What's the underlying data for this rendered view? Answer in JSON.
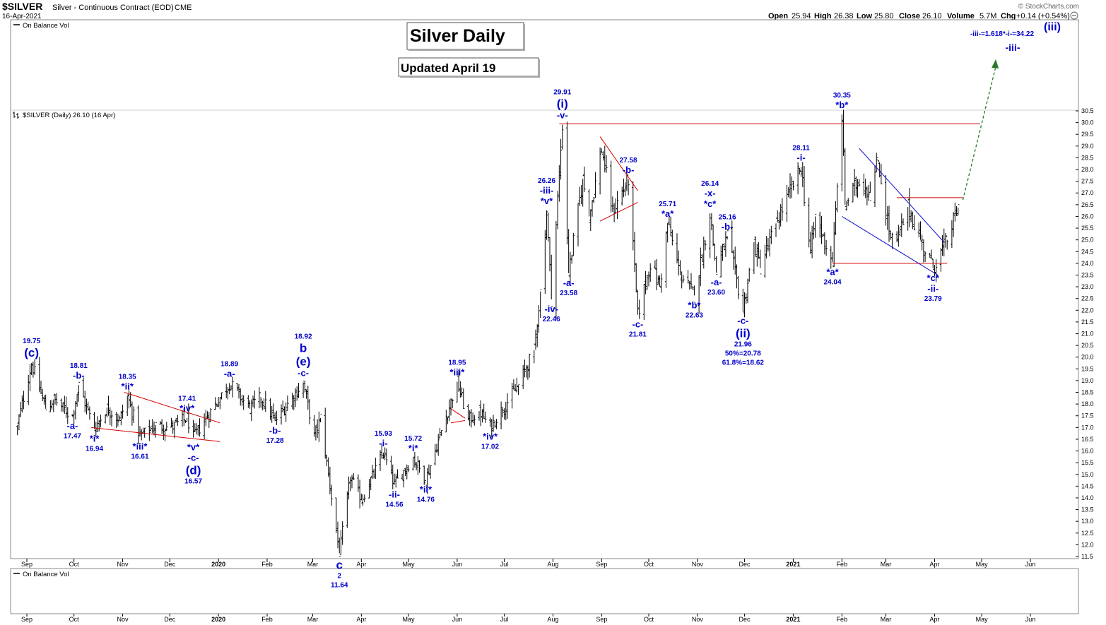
{
  "header": {
    "symbol": "$SILVER",
    "description": "Silver - Continuous Contract (EOD)",
    "exchange": "CME",
    "date": "16-Apr-2021",
    "open_label": "Open",
    "open": "25.94",
    "high_label": "High",
    "high": "26.38",
    "low_label": "Low",
    "low": "25.80",
    "close_label": "Close",
    "close": "26.10",
    "volume_label": "Volume",
    "volume": "5.7M",
    "chg_label": "Chg",
    "chg": "+0.14 (+0.54%)",
    "watermark": "© StockCharts.com"
  },
  "indicator_top": "On Balance Vol",
  "indicator_bottom": "On Balance Vol",
  "price_legend": "$SILVER (Daily) 26.10 (16 Apr)",
  "title_box": "Silver Daily",
  "updated_box": "Updated April 19",
  "colors": {
    "wave": "#0000cc",
    "trend": "#d40000",
    "channel": "#1010d0",
    "projection": "#2a7a2a"
  },
  "chart_data": {
    "type": "ohlc",
    "y_axis_range": [
      11.5,
      30.5
    ],
    "y_ticks": [
      "30.5",
      "30.0",
      "29.5",
      "29.0",
      "28.5",
      "28.0",
      "27.5",
      "27.0",
      "26.5",
      "26.0",
      "25.5",
      "25.0",
      "24.5",
      "24.0",
      "23.5",
      "23.0",
      "22.5",
      "22.0",
      "21.5",
      "21.0",
      "20.5",
      "20.0",
      "19.5",
      "19.0",
      "18.5",
      "18.0",
      "17.5",
      "17.0",
      "16.5",
      "16.0",
      "15.5",
      "15.0",
      "14.5",
      "14.0",
      "13.5",
      "13.0",
      "12.5",
      "12.0",
      "11.5"
    ],
    "x_ticks": [
      "Sep",
      "Oct",
      "Nov",
      "Dec",
      "2020",
      "Feb",
      "Mar",
      "Apr",
      "May",
      "Jun",
      "Jul",
      "Aug",
      "Sep",
      "Oct",
      "Nov",
      "Dec",
      "2021",
      "Feb",
      "Mar",
      "Apr",
      "May",
      "Jun"
    ],
    "swings": [
      [
        "2019-08-26",
        17.1
      ],
      [
        "2019-09-04",
        19.75
      ],
      [
        "2019-09-13",
        17.8
      ],
      [
        "2019-09-18",
        18.2
      ],
      [
        "2019-09-30",
        17.47
      ],
      [
        "2019-10-04",
        18.81
      ],
      [
        "2019-10-14",
        16.94
      ],
      [
        "2019-10-22",
        17.85
      ],
      [
        "2019-10-30",
        17.3
      ],
      [
        "2019-11-04",
        18.35
      ],
      [
        "2019-11-12",
        16.61
      ],
      [
        "2019-11-22",
        17.1
      ],
      [
        "2019-12-02",
        17.0
      ],
      [
        "2019-12-12",
        17.41
      ],
      [
        "2019-12-16",
        16.57
      ],
      [
        "2020-01-08",
        18.89
      ],
      [
        "2020-01-21",
        17.8
      ],
      [
        "2020-01-28",
        18.3
      ],
      [
        "2020-02-06",
        17.28
      ],
      [
        "2020-02-24",
        18.92
      ],
      [
        "2020-03-02",
        16.6
      ],
      [
        "2020-03-06",
        17.4
      ],
      [
        "2020-03-18",
        11.64
      ],
      [
        "2020-03-25",
        14.9
      ],
      [
        "2020-04-01",
        13.9
      ],
      [
        "2020-04-15",
        15.93
      ],
      [
        "2020-04-22",
        14.56
      ],
      [
        "2020-05-04",
        15.72
      ],
      [
        "2020-05-12",
        14.76
      ],
      [
        "2020-06-01",
        18.95
      ],
      [
        "2020-06-08",
        17.3
      ],
      [
        "2020-06-15",
        17.7
      ],
      [
        "2020-06-22",
        17.02
      ],
      [
        "2020-07-10",
        18.8
      ],
      [
        "2020-07-20",
        20.3
      ],
      [
        "2020-07-24",
        22.8
      ],
      [
        "2020-07-28",
        26.26
      ],
      [
        "2020-07-31",
        22.46
      ],
      [
        "2020-08-07",
        29.91
      ],
      [
        "2020-08-11",
        23.58
      ],
      [
        "2020-08-20",
        27.6
      ],
      [
        "2020-08-24",
        26.0
      ],
      [
        "2020-09-01",
        28.9
      ],
      [
        "2020-09-08",
        26.2
      ],
      [
        "2020-09-18",
        27.58
      ],
      [
        "2020-09-24",
        21.81
      ],
      [
        "2020-10-02",
        24.0
      ],
      [
        "2020-10-08",
        23.0
      ],
      [
        "2020-10-13",
        25.71
      ],
      [
        "2020-10-21",
        23.5
      ],
      [
        "2020-10-30",
        22.63
      ],
      [
        "2020-11-09",
        26.14
      ],
      [
        "2020-11-13",
        23.6
      ],
      [
        "2020-11-20",
        25.16
      ],
      [
        "2020-11-30",
        21.96
      ],
      [
        "2020-12-07",
        24.9
      ],
      [
        "2020-12-11",
        23.8
      ],
      [
        "2020-12-21",
        25.7
      ],
      [
        "2021-01-06",
        28.11
      ],
      [
        "2021-01-12",
        24.4
      ],
      [
        "2021-01-15",
        26.0
      ],
      [
        "2021-01-26",
        24.04
      ],
      [
        "2021-02-01",
        30.35
      ],
      [
        "2021-02-03",
        26.5
      ],
      [
        "2021-02-12",
        27.6
      ],
      [
        "2021-02-19",
        27.0
      ],
      [
        "2021-02-24",
        28.4
      ],
      [
        "2021-03-04",
        25.0
      ],
      [
        "2021-03-08",
        24.9
      ],
      [
        "2021-03-15",
        26.4
      ],
      [
        "2021-03-23",
        25.0
      ],
      [
        "2021-03-31",
        23.79
      ],
      [
        "2021-04-09",
        25.0
      ],
      [
        "2021-04-16",
        26.38
      ]
    ],
    "wave_labels": [
      {
        "date": "2019-09-04",
        "price": 19.75,
        "pos": "above",
        "lines": [
          "19.75",
          "(c)"
        ]
      },
      {
        "date": "2019-09-30",
        "price": 17.47,
        "pos": "below",
        "lines": [
          "-a-",
          "17.47"
        ]
      },
      {
        "date": "2019-10-04",
        "price": 18.81,
        "pos": "above",
        "lines": [
          "18.81",
          "-b-"
        ]
      },
      {
        "date": "2019-10-14",
        "price": 16.94,
        "pos": "below",
        "lines": [
          "*i*",
          "16.94"
        ]
      },
      {
        "date": "2019-11-04",
        "price": 18.35,
        "pos": "above",
        "lines": [
          "18.35",
          "*ii*"
        ]
      },
      {
        "date": "2019-11-12",
        "price": 16.61,
        "pos": "below",
        "lines": [
          "*iii*",
          "16.61"
        ]
      },
      {
        "date": "2019-12-12",
        "price": 17.41,
        "pos": "above",
        "lines": [
          "17.41",
          "*iv*"
        ]
      },
      {
        "date": "2019-12-16",
        "price": 16.57,
        "pos": "below",
        "lines": [
          "*v*",
          "-c-",
          "(d)",
          "16.57"
        ]
      },
      {
        "date": "2020-01-08",
        "price": 18.89,
        "pos": "above",
        "lines": [
          "18.89",
          "-a-"
        ]
      },
      {
        "date": "2020-02-06",
        "price": 17.28,
        "pos": "below",
        "lines": [
          "-b-",
          "17.28"
        ]
      },
      {
        "date": "2020-02-24",
        "price": 18.92,
        "pos": "above",
        "lines": [
          "18.92",
          "b",
          "(e)",
          "-c-"
        ]
      },
      {
        "date": "2020-03-18",
        "price": 11.64,
        "pos": "below",
        "lines": [
          "c",
          "2",
          "11.64"
        ]
      },
      {
        "date": "2020-04-15",
        "price": 15.93,
        "pos": "above",
        "lines": [
          "15.93",
          "-i-"
        ]
      },
      {
        "date": "2020-04-22",
        "price": 14.56,
        "pos": "below",
        "lines": [
          "-ii-",
          "14.56"
        ]
      },
      {
        "date": "2020-05-04",
        "price": 15.72,
        "pos": "above",
        "lines": [
          "15.72",
          "*i*"
        ]
      },
      {
        "date": "2020-05-12",
        "price": 14.76,
        "pos": "below",
        "lines": [
          "*ii*",
          "14.76"
        ]
      },
      {
        "date": "2020-06-01",
        "price": 18.95,
        "pos": "above",
        "lines": [
          "18.95",
          "*iii*"
        ]
      },
      {
        "date": "2020-06-22",
        "price": 17.02,
        "pos": "below",
        "lines": [
          "*iv*",
          "17.02"
        ]
      },
      {
        "date": "2020-07-28",
        "price": 26.26,
        "pos": "above",
        "lines": [
          "26.26",
          "-iii-",
          "*v*"
        ]
      },
      {
        "date": "2020-07-31",
        "price": 22.46,
        "pos": "below",
        "lines": [
          "-iv-",
          "22.46"
        ]
      },
      {
        "date": "2020-08-07",
        "price": 29.91,
        "pos": "above",
        "lines": [
          "29.91",
          "(i)",
          "-v-"
        ]
      },
      {
        "date": "2020-08-11",
        "price": 23.58,
        "pos": "below",
        "lines": [
          "-a-",
          "23.58"
        ]
      },
      {
        "date": "2020-09-18",
        "price": 27.58,
        "pos": "above",
        "lines": [
          "27.58",
          "-b-"
        ]
      },
      {
        "date": "2020-09-24",
        "price": 21.81,
        "pos": "below",
        "lines": [
          "-c-",
          "21.81"
        ]
      },
      {
        "date": "2020-10-13",
        "price": 25.71,
        "pos": "above",
        "lines": [
          "25.71",
          "*a*"
        ]
      },
      {
        "date": "2020-10-30",
        "price": 22.63,
        "pos": "below",
        "lines": [
          "*b*",
          "22.63"
        ]
      },
      {
        "date": "2020-11-09",
        "price": 26.14,
        "pos": "above",
        "lines": [
          "26.14",
          "-x-",
          "*c*"
        ]
      },
      {
        "date": "2020-11-13",
        "price": 23.6,
        "pos": "below",
        "lines": [
          "-a-",
          "23.60"
        ]
      },
      {
        "date": "2020-11-20",
        "price": 25.16,
        "pos": "above",
        "lines": [
          "25.16",
          "-b-"
        ]
      },
      {
        "date": "2020-11-30",
        "price": 21.96,
        "pos": "below",
        "lines": [
          "-c-",
          "(ii)",
          "21.96",
          "50%=20.78",
          "61.8%=18.62"
        ]
      },
      {
        "date": "2021-01-06",
        "price": 28.11,
        "pos": "above",
        "lines": [
          "28.11",
          "-i-"
        ]
      },
      {
        "date": "2021-01-26",
        "price": 24.04,
        "pos": "below",
        "lines": [
          "*a*",
          "24.04"
        ]
      },
      {
        "date": "2021-02-01",
        "price": 30.35,
        "pos": "above",
        "lines": [
          "30.35",
          "*b*"
        ]
      },
      {
        "date": "2021-03-31",
        "price": 23.79,
        "pos": "below",
        "lines": [
          "*c*",
          "-ii-",
          "23.79"
        ]
      }
    ],
    "projection": {
      "lines": [
        "-iii-=1.618*-i-=34.22",
        "-iii-",
        "(iii)"
      ]
    },
    "trendlines_red": [
      [
        [
          "2019-10-12",
          17.0
        ],
        [
          "2020-01-02",
          16.4
        ]
      ],
      [
        [
          "2019-11-02",
          18.5
        ],
        [
          "2020-01-02",
          17.2
        ]
      ],
      [
        [
          "2020-05-28",
          17.8
        ],
        [
          "2020-06-06",
          17.4
        ]
      ],
      [
        [
          "2020-05-28",
          17.2
        ],
        [
          "2020-06-06",
          17.3
        ]
      ],
      [
        [
          "2020-08-05",
          29.95
        ],
        [
          "2021-04-30",
          29.95
        ]
      ],
      [
        [
          "2020-08-31",
          29.4
        ],
        [
          "2020-09-24",
          27.1
        ]
      ],
      [
        [
          "2020-08-31",
          25.8
        ],
        [
          "2020-09-24",
          26.6
        ]
      ],
      [
        [
          "2021-01-26",
          24.0
        ],
        [
          "2021-04-09",
          24.0
        ]
      ],
      [
        [
          "2021-03-08",
          26.8
        ],
        [
          "2021-04-19",
          26.8
        ]
      ]
    ],
    "trendlines_blue": [
      [
        [
          "2021-02-12",
          28.9
        ],
        [
          "2021-04-07",
          24.9
        ]
      ],
      [
        [
          "2021-02-01",
          26.0
        ],
        [
          "2021-04-03",
          23.5
        ]
      ]
    ],
    "projection_arrow": [
      [
        "2021-04-19",
        26.7
      ],
      [
        "2021-05-10",
        32.7
      ]
    ]
  }
}
